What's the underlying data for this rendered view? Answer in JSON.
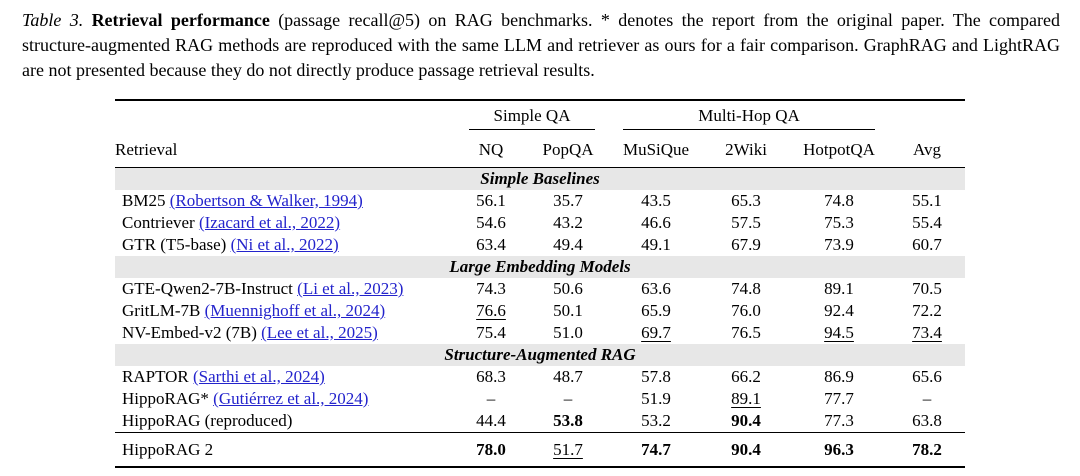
{
  "caption": {
    "label": "Table 3.",
    "title": "Retrieval performance",
    "rest": "(passage recall@5) on RAG benchmarks. * denotes the report from the original paper. The compared structure-augmented RAG methods are reproduced with the same LLM and retriever as ours for a fair comparison. GraphRAG and LightRAG are not presented because they do not directly produce passage retrieval results."
  },
  "colors": {
    "link_blue": "#2323cc",
    "section_bg": "#e7e7e7",
    "rule": "#000000"
  },
  "table": {
    "first_col_header": "Retrieval",
    "groups": [
      {
        "label": "Simple QA",
        "span": 2
      },
      {
        "label": "Multi-Hop QA",
        "span": 3
      }
    ],
    "columns": [
      "NQ",
      "PopQA",
      "MuSiQue",
      "2Wiki",
      "HotpotQA",
      "Avg"
    ],
    "sections": [
      {
        "header": "Simple Baselines",
        "rows": [
          {
            "method": "BM25",
            "citation": "(Robertson & Walker, 1994)",
            "cells": [
              {
                "v": "56.1"
              },
              {
                "v": "35.7"
              },
              {
                "v": "43.5"
              },
              {
                "v": "65.3"
              },
              {
                "v": "74.8"
              },
              {
                "v": "55.1"
              }
            ]
          },
          {
            "method": "Contriever",
            "citation": "(Izacard et al., 2022)",
            "cells": [
              {
                "v": "54.6"
              },
              {
                "v": "43.2"
              },
              {
                "v": "46.6"
              },
              {
                "v": "57.5"
              },
              {
                "v": "75.3"
              },
              {
                "v": "55.4"
              }
            ]
          },
          {
            "method": "GTR (T5-base)",
            "citation": "(Ni et al., 2022)",
            "cells": [
              {
                "v": "63.4"
              },
              {
                "v": "49.4"
              },
              {
                "v": "49.1"
              },
              {
                "v": "67.9"
              },
              {
                "v": "73.9"
              },
              {
                "v": "60.7"
              }
            ]
          }
        ]
      },
      {
        "header": "Large Embedding Models",
        "rows": [
          {
            "method": "GTE-Qwen2-7B-Instruct",
            "citation": "(Li et al., 2023)",
            "cells": [
              {
                "v": "74.3"
              },
              {
                "v": "50.6"
              },
              {
                "v": "63.6"
              },
              {
                "v": "74.8"
              },
              {
                "v": "89.1"
              },
              {
                "v": "70.5"
              }
            ]
          },
          {
            "method": "GritLM-7B",
            "citation": "(Muennighoff et al., 2024)",
            "cells": [
              {
                "v": "76.6",
                "u": true
              },
              {
                "v": "50.1"
              },
              {
                "v": "65.9"
              },
              {
                "v": "76.0"
              },
              {
                "v": "92.4"
              },
              {
                "v": "72.2"
              }
            ]
          },
          {
            "method": "NV-Embed-v2 (7B)",
            "citation": "(Lee et al., 2025)",
            "cells": [
              {
                "v": "75.4"
              },
              {
                "v": "51.0"
              },
              {
                "v": "69.7",
                "u": true
              },
              {
                "v": "76.5"
              },
              {
                "v": "94.5",
                "u": true
              },
              {
                "v": "73.4",
                "u": true
              }
            ]
          }
        ]
      },
      {
        "header": "Structure-Augmented RAG",
        "rows": [
          {
            "method": "RAPTOR",
            "citation": "(Sarthi et al., 2024)",
            "cells": [
              {
                "v": "68.3"
              },
              {
                "v": "48.7"
              },
              {
                "v": "57.8"
              },
              {
                "v": "66.2"
              },
              {
                "v": "86.9"
              },
              {
                "v": "65.6"
              }
            ]
          },
          {
            "method": "HippoRAG*",
            "citation": "(Gutiérrez et al., 2024)",
            "cells": [
              {
                "v": "–"
              },
              {
                "v": "–"
              },
              {
                "v": "51.9"
              },
              {
                "v": "89.1",
                "u": true
              },
              {
                "v": "77.7"
              },
              {
                "v": "–"
              }
            ]
          },
          {
            "method": "HippoRAG (reproduced)",
            "citation": null,
            "cells": [
              {
                "v": "44.4"
              },
              {
                "v": "53.8",
                "b": true
              },
              {
                "v": "53.2"
              },
              {
                "v": "90.4",
                "b": true
              },
              {
                "v": "77.3"
              },
              {
                "v": "63.8"
              }
            ]
          }
        ]
      }
    ],
    "final_row": {
      "method": "HippoRAG 2",
      "cells": [
        {
          "v": "78.0",
          "b": true
        },
        {
          "v": "51.7",
          "u": true
        },
        {
          "v": "74.7",
          "b": true
        },
        {
          "v": "90.4",
          "b": true
        },
        {
          "v": "96.3",
          "b": true
        },
        {
          "v": "78.2",
          "b": true
        }
      ]
    }
  }
}
